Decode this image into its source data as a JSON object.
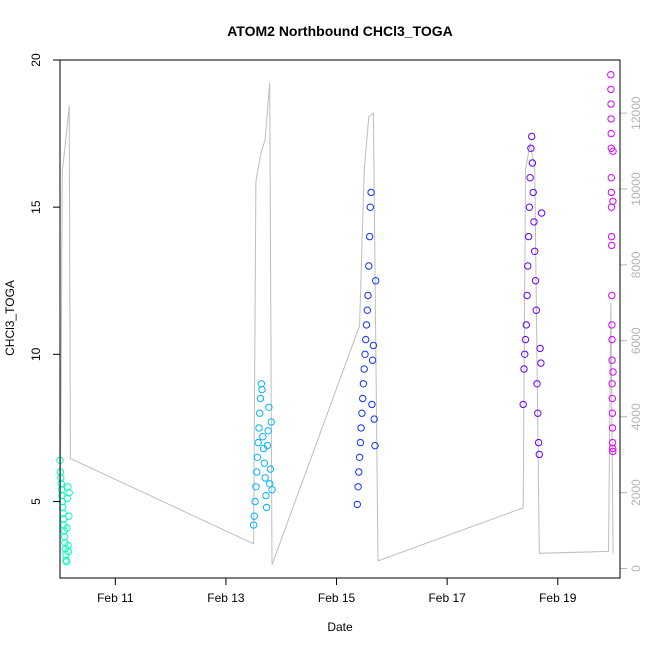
{
  "chart_data": {
    "type": "scatter",
    "title": "ATOM2 Northbound CHCl3_TOGA",
    "xlabel": "Date",
    "ylabel": "CHCl3_TOGA",
    "x_axis": {
      "kind": "date",
      "min": "2017-02-10 00:00",
      "max": "2017-02-20 03:00",
      "tick_labels": [
        "Feb 11",
        "Feb 13",
        "Feb 15",
        "Feb 17",
        "Feb 19"
      ],
      "tick_dates": [
        "2017-02-11",
        "2017-02-13",
        "2017-02-15",
        "2017-02-17",
        "2017-02-19"
      ]
    },
    "y_axis": {
      "min": 2.4,
      "max": 20.0,
      "ticks": [
        5,
        10,
        15,
        20
      ]
    },
    "y2_axis": {
      "min": -250,
      "max": 13400,
      "ticks": [
        0,
        2000,
        4000,
        6000,
        8000,
        10000,
        12000
      ],
      "color": "#b4b4b4"
    },
    "grid": false,
    "legend": "none",
    "altitude_trace_color": "#bebebe",
    "point_style": "open-circle",
    "color_by_time": [
      "#00ffbb",
      "#00b4ff",
      "#1133ff",
      "#6600ff",
      "#dd00ff"
    ],
    "altitude_trace": [
      {
        "t": "2017-02-10 00:00",
        "alt": 13
      },
      {
        "t": "2017-02-10 01:00",
        "alt": 10500
      },
      {
        "t": "2017-02-10 02:00",
        "alt": 11000
      },
      {
        "t": "2017-02-10 03:00",
        "alt": 11600
      },
      {
        "t": "2017-02-10 04:00",
        "alt": 12200
      },
      {
        "t": "2017-02-10 04:30",
        "alt": 2900
      },
      {
        "t": "2017-02-13 12:00",
        "alt": 650
      },
      {
        "t": "2017-02-13 13:00",
        "alt": 10200
      },
      {
        "t": "2017-02-13 15:00",
        "alt": 10900
      },
      {
        "t": "2017-02-13 17:00",
        "alt": 11300
      },
      {
        "t": "2017-02-13 19:00",
        "alt": 12800
      },
      {
        "t": "2017-02-13 20:00",
        "alt": 100
      },
      {
        "t": "2017-02-15 10:00",
        "alt": 6400
      },
      {
        "t": "2017-02-15 12:00",
        "alt": 10500
      },
      {
        "t": "2017-02-15 14:00",
        "alt": 11900
      },
      {
        "t": "2017-02-15 16:00",
        "alt": 12000
      },
      {
        "t": "2017-02-15 18:00",
        "alt": 200
      },
      {
        "t": "2017-02-18 09:00",
        "alt": 1600
      },
      {
        "t": "2017-02-18 10:00",
        "alt": 10500
      },
      {
        "t": "2017-02-18 12:00",
        "alt": 11200
      },
      {
        "t": "2017-02-18 14:00",
        "alt": 10600
      },
      {
        "t": "2017-02-18 16:00",
        "alt": 400
      },
      {
        "t": "2017-02-19 22:00",
        "alt": 450
      },
      {
        "t": "2017-02-19 23:00",
        "alt": 7000
      },
      {
        "t": "2017-02-20 00:00",
        "alt": 400
      }
    ],
    "series": [
      {
        "x_range": [
          "2017-02-10 00:00",
          "2017-02-10 04:00"
        ],
        "y_values": [
          6.4,
          6.0,
          5.8,
          5.6,
          5.4,
          5.2,
          5.0,
          4.8,
          4.6,
          4.4,
          4.2,
          4.0,
          3.8,
          3.6,
          3.4,
          3.2,
          3.0,
          2.95,
          4.1,
          5.1,
          5.5,
          3.5,
          3.3,
          4.5,
          5.3
        ]
      },
      {
        "x_range": [
          "2017-02-13 12:00",
          "2017-02-13 20:00"
        ],
        "y_values": [
          4.2,
          4.5,
          5.0,
          5.5,
          6.0,
          6.5,
          7.0,
          7.5,
          8.0,
          8.5,
          9.0,
          8.8,
          7.2,
          6.8,
          6.3,
          5.8,
          5.2,
          4.8,
          6.9,
          7.4,
          8.2,
          5.6,
          6.1,
          7.7,
          5.4
        ]
      },
      {
        "x_range": [
          "2017-02-15 09:00",
          "2017-02-15 17:00"
        ],
        "y_values": [
          4.9,
          5.5,
          6.0,
          6.5,
          7.0,
          7.5,
          8.0,
          8.5,
          9.0,
          9.5,
          10.0,
          10.5,
          11.0,
          11.5,
          12.0,
          13.0,
          14.0,
          15.0,
          15.5,
          8.3,
          9.8,
          10.3,
          7.8,
          6.9,
          12.5
        ]
      },
      {
        "x_range": [
          "2017-02-18 09:00",
          "2017-02-18 17:00"
        ],
        "y_values": [
          8.3,
          9.5,
          10.0,
          10.5,
          11.0,
          12.0,
          13.0,
          14.0,
          15.0,
          16.0,
          17.0,
          17.4,
          16.5,
          15.5,
          14.5,
          13.5,
          12.5,
          11.5,
          9.0,
          8.0,
          7.0,
          6.6,
          10.2,
          9.7,
          14.8
        ]
      },
      {
        "x_range": [
          "2017-02-19 23:00",
          "2017-02-19 23:59"
        ],
        "y_values": [
          19.5,
          19.0,
          18.5,
          18.0,
          17.5,
          17.0,
          16.0,
          15.5,
          15.0,
          14.0,
          13.7,
          12.0,
          11.0,
          10.5,
          9.8,
          9.0,
          8.5,
          8.0,
          7.5,
          7.0,
          6.8,
          6.7,
          15.2,
          16.9,
          9.4
        ]
      }
    ]
  }
}
